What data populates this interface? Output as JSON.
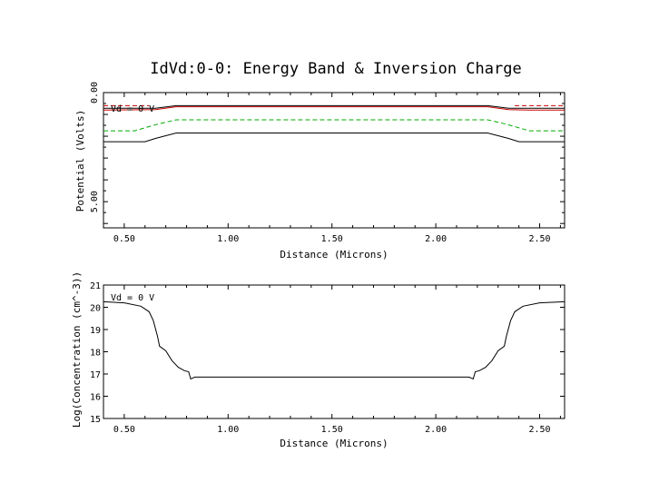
{
  "title": "IdVd:0-0: Energy Band & Inversion Charge",
  "chart_data": [
    {
      "type": "line",
      "xlabel": "Distance (Microns)",
      "ylabel": "Potential (Volts)",
      "xlim": [
        0.4,
        2.62
      ],
      "ylim": [
        0.0,
        6.2
      ],
      "y_inverted": true,
      "xticks": [
        "0.50",
        "1.00",
        "1.50",
        "2.00",
        "2.50"
      ],
      "yticks": [
        "0.00",
        "5.00"
      ],
      "annotation": "Vd = 0 V",
      "series": [
        {
          "color": "#cc0000",
          "style": "solid",
          "x": [
            0.4,
            0.65,
            0.75,
            2.25,
            2.35,
            2.45,
            2.62
          ],
          "y": [
            0.8,
            0.78,
            0.65,
            0.65,
            0.78,
            0.8,
            0.8
          ]
        },
        {
          "color": "#cc0000",
          "style": "dashed",
          "x": [
            0.4,
            0.62
          ],
          "y": [
            0.6,
            0.6
          ]
        },
        {
          "color": "#cc0000",
          "style": "dashed",
          "x": [
            2.38,
            2.62
          ],
          "y": [
            0.6,
            0.6
          ]
        },
        {
          "color": "#000000",
          "style": "solid",
          "x": [
            0.4,
            0.65,
            0.75,
            2.25,
            2.35,
            2.45,
            2.62
          ],
          "y": [
            0.72,
            0.72,
            0.6,
            0.6,
            0.72,
            0.72,
            0.72
          ]
        },
        {
          "color": "#00aa00",
          "style": "dashed",
          "x": [
            0.4,
            0.55,
            0.66,
            0.75,
            2.25,
            2.34,
            2.45,
            2.62
          ],
          "y": [
            1.75,
            1.75,
            1.45,
            1.25,
            1.25,
            1.45,
            1.75,
            1.75
          ]
        },
        {
          "color": "#000000",
          "style": "solid",
          "x": [
            0.4,
            0.6,
            0.65,
            0.75,
            2.25,
            2.35,
            2.4,
            2.62
          ],
          "y": [
            2.25,
            2.25,
            2.1,
            1.85,
            1.85,
            2.1,
            2.25,
            2.25
          ]
        }
      ]
    },
    {
      "type": "line",
      "xlabel": "Distance (Microns)",
      "ylabel": "Log(Concentration (cm^-3))",
      "xlim": [
        0.4,
        2.62
      ],
      "ylim": [
        15,
        21
      ],
      "xticks": [
        "0.50",
        "1.00",
        "1.50",
        "2.00",
        "2.50"
      ],
      "yticks": [
        "15",
        "16",
        "17",
        "18",
        "19",
        "20",
        "21"
      ],
      "annotation": "Vd = 0 V",
      "series": [
        {
          "color": "#000000",
          "style": "solid",
          "x": [
            0.4,
            0.5,
            0.58,
            0.62,
            0.64,
            0.66,
            0.67,
            0.7,
            0.73,
            0.76,
            0.79,
            0.81,
            0.82,
            0.84,
            0.9,
            1.0,
            1.5,
            2.0,
            2.1,
            2.16,
            2.18,
            2.19,
            2.21,
            2.24,
            2.27,
            2.3,
            2.33,
            2.34,
            2.36,
            2.38,
            2.42,
            2.5,
            2.62
          ],
          "y": [
            20.25,
            20.2,
            20.05,
            19.8,
            19.4,
            18.7,
            18.25,
            18.05,
            17.6,
            17.3,
            17.15,
            17.1,
            16.78,
            16.86,
            16.86,
            16.86,
            16.86,
            16.86,
            16.86,
            16.86,
            16.78,
            17.1,
            17.15,
            17.3,
            17.6,
            18.05,
            18.25,
            18.7,
            19.4,
            19.8,
            20.05,
            20.2,
            20.25
          ]
        }
      ]
    }
  ]
}
